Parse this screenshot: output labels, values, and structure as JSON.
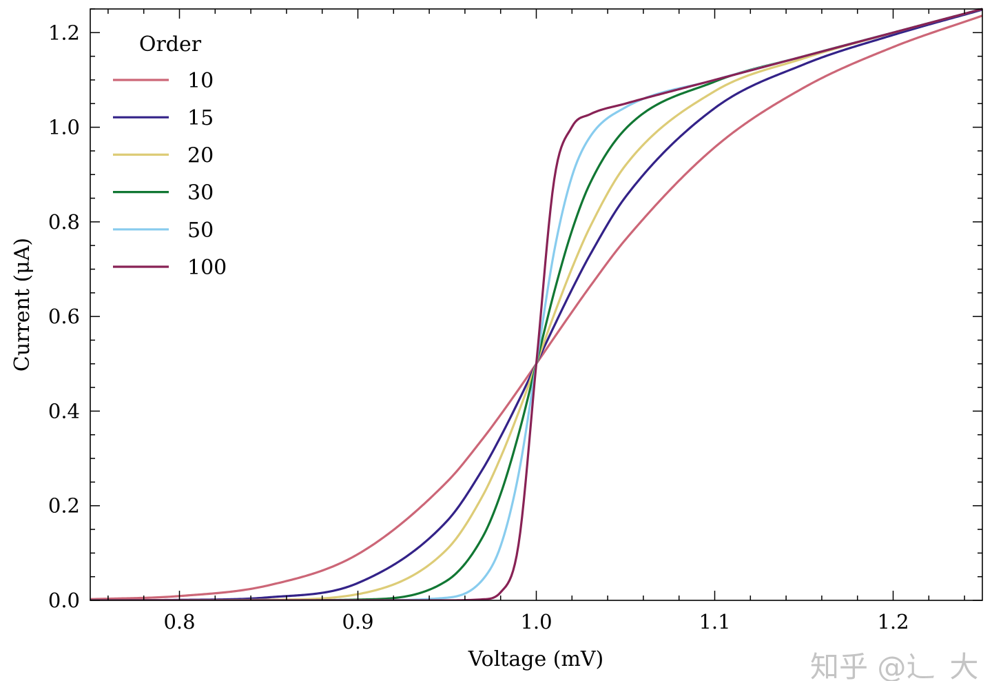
{
  "chart_data": {
    "type": "line",
    "title": "",
    "xlabel": "Voltage (mV)",
    "ylabel": "Current (μA)",
    "xlim": [
      0.75,
      1.25
    ],
    "ylim": [
      0,
      1.25
    ],
    "x_ticks": [
      0.8,
      0.9,
      1.0,
      1.1,
      1.2
    ],
    "x_tick_labels": [
      "0.8",
      "0.9",
      "1.0",
      "1.1",
      "1.2"
    ],
    "y_ticks": [
      0.0,
      0.2,
      0.4,
      0.6,
      0.8,
      1.0,
      1.2
    ],
    "y_tick_labels": [
      "0.0",
      "0.2",
      "0.4",
      "0.6",
      "0.8",
      "1.0",
      "1.2"
    ],
    "x_minor_step": 0.02,
    "y_minor_step": 0.05,
    "grid": false,
    "legend": {
      "title": "Order",
      "placement": "top-left"
    },
    "x": [
      0.75,
      0.8,
      0.85,
      0.9,
      0.95,
      0.97,
      0.98,
      0.99,
      1.0,
      1.01,
      1.02,
      1.03,
      1.05,
      1.1,
      1.15,
      1.2,
      1.25
    ],
    "series": [
      {
        "name": "10",
        "color": "#CC6677",
        "values": [
          0.0024,
          0.0091,
          0.0318,
          0.0976,
          0.2507,
          0.3417,
          0.3923,
          0.4454,
          0.5,
          0.5551,
          0.6096,
          0.6629,
          0.7626,
          0.9576,
          1.0838,
          1.1695,
          1.2358
        ]
      },
      {
        "name": "15",
        "color": "#332288",
        "values": [
          0.0001,
          0.001,
          0.0064,
          0.0366,
          0.1679,
          0.2776,
          0.3459,
          0.4209,
          0.5,
          0.5798,
          0.6573,
          0.7295,
          0.8527,
          1.0404,
          1.1329,
          1.195,
          1.2485
        ]
      },
      {
        "name": "20",
        "color": "#DDCC77",
        "values": [
          0.0,
          0.0001,
          0.0013,
          0.0131,
          0.1082,
          0.2214,
          0.3021,
          0.3968,
          0.5,
          0.6042,
          0.702,
          0.7883,
          0.9195,
          1.0762,
          1.1458,
          1.1997,
          1.25
        ]
      },
      {
        "name": "30",
        "color": "#117733",
        "values": [
          0.0,
          0.0,
          0.0,
          0.0016,
          0.0419,
          0.1344,
          0.2247,
          0.3501,
          0.5,
          0.6514,
          0.7817,
          0.8805,
          0.9966,
          1.0964,
          1.15,
          1.2,
          1.25
        ]
      },
      {
        "name": "50",
        "color": "#88CCEE",
        "values": [
          0.0,
          0.0,
          0.0,
          0.0,
          0.0056,
          0.044,
          0.1148,
          0.2652,
          0.5,
          0.7374,
          0.8963,
          0.9791,
          1.0421,
          1.1,
          1.15,
          1.2,
          1.25
        ]
      },
      {
        "name": "100",
        "color": "#882255",
        "values": [
          0.0,
          0.0,
          0.0,
          0.0,
          0.0,
          0.0022,
          0.017,
          0.117,
          0.5,
          0.8885,
          1.0009,
          1.0272,
          1.05,
          1.1,
          1.15,
          1.2,
          1.25
        ]
      }
    ]
  },
  "watermark": "知乎 @辶_大"
}
